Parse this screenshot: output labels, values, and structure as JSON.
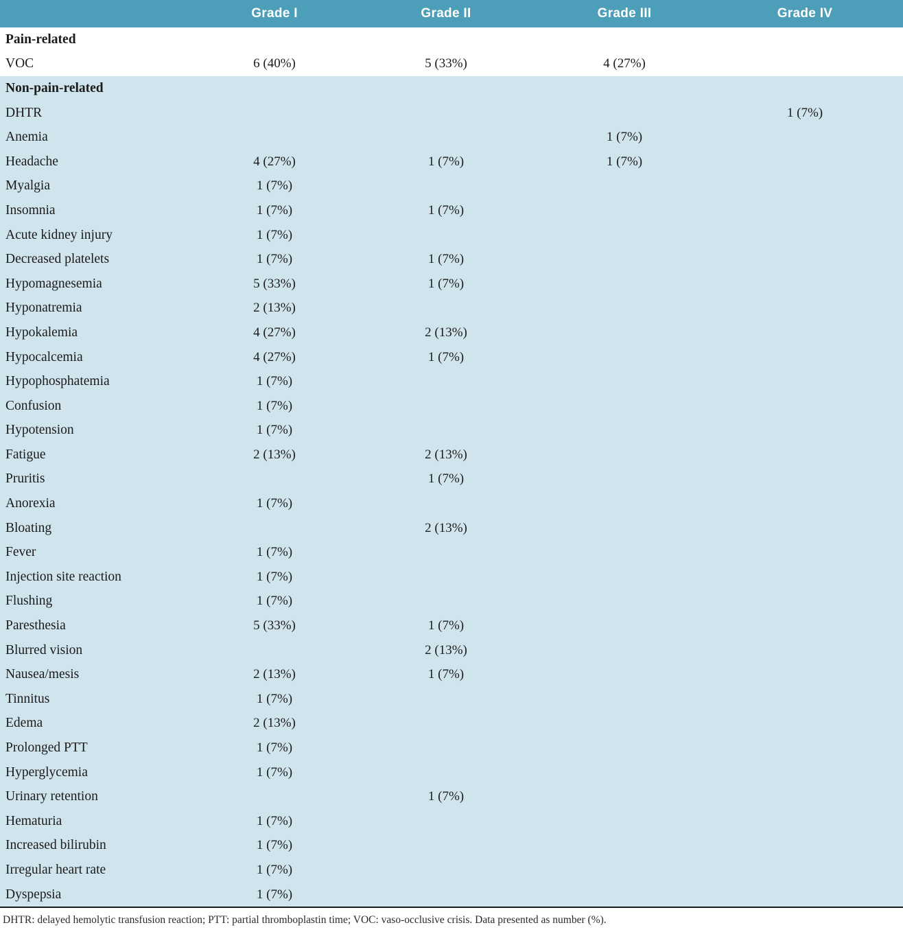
{
  "header": {
    "columns": [
      "Grade I",
      "Grade II",
      "Grade III",
      "Grade IV"
    ]
  },
  "sections": [
    {
      "title": "Pain-related",
      "shaded": false,
      "rows": [
        {
          "label": "VOC",
          "values": [
            "6 (40%)",
            "5 (33%)",
            "4 (27%)",
            ""
          ]
        }
      ]
    },
    {
      "title": "Non-pain-related",
      "shaded": true,
      "rows": [
        {
          "label": "DHTR",
          "values": [
            "",
            "",
            "",
            "1 (7%)"
          ]
        },
        {
          "label": "Anemia",
          "values": [
            "",
            "",
            "1 (7%)",
            ""
          ]
        },
        {
          "label": "Headache",
          "values": [
            "4 (27%)",
            "1 (7%)",
            "1 (7%)",
            ""
          ]
        },
        {
          "label": "Myalgia",
          "values": [
            "1 (7%)",
            "",
            "",
            ""
          ]
        },
        {
          "label": "Insomnia",
          "values": [
            "1 (7%)",
            "1 (7%)",
            "",
            ""
          ]
        },
        {
          "label": "Acute kidney injury",
          "values": [
            "1 (7%)",
            "",
            "",
            ""
          ]
        },
        {
          "label": "Decreased platelets",
          "values": [
            "1 (7%)",
            "1 (7%)",
            "",
            ""
          ]
        },
        {
          "label": "Hypomagnesemia",
          "values": [
            "5 (33%)",
            "1 (7%)",
            "",
            ""
          ]
        },
        {
          "label": "Hyponatremia",
          "values": [
            "2 (13%)",
            "",
            "",
            ""
          ]
        },
        {
          "label": "Hypokalemia",
          "values": [
            "4 (27%)",
            "2 (13%)",
            "",
            ""
          ]
        },
        {
          "label": "Hypocalcemia",
          "values": [
            "4 (27%)",
            "1 (7%)",
            "",
            ""
          ]
        },
        {
          "label": "Hypophosphatemia",
          "values": [
            "1 (7%)",
            "",
            "",
            ""
          ]
        },
        {
          "label": "Confusion",
          "values": [
            "1 (7%)",
            "",
            "",
            ""
          ]
        },
        {
          "label": "Hypotension",
          "values": [
            "1 (7%)",
            "",
            "",
            ""
          ]
        },
        {
          "label": "Fatigue",
          "values": [
            "2 (13%)",
            "2 (13%)",
            "",
            ""
          ]
        },
        {
          "label": "Pruritis",
          "values": [
            "",
            "1 (7%)",
            "",
            ""
          ]
        },
        {
          "label": "Anorexia",
          "values": [
            "1 (7%)",
            "",
            "",
            ""
          ]
        },
        {
          "label": "Bloating",
          "values": [
            "",
            "2 (13%)",
            "",
            ""
          ]
        },
        {
          "label": "Fever",
          "values": [
            "1 (7%)",
            "",
            "",
            ""
          ]
        },
        {
          "label": "Injection site reaction",
          "values": [
            "1 (7%)",
            "",
            "",
            ""
          ]
        },
        {
          "label": "Flushing",
          "values": [
            "1 (7%)",
            "",
            "",
            ""
          ]
        },
        {
          "label": "Paresthesia",
          "values": [
            "5 (33%)",
            "1 (7%)",
            "",
            ""
          ]
        },
        {
          "label": "Blurred vision",
          "values": [
            "",
            "2 (13%)",
            "",
            ""
          ]
        },
        {
          "label": "Nausea/mesis",
          "values": [
            "2 (13%)",
            "1 (7%)",
            "",
            ""
          ]
        },
        {
          "label": "Tinnitus",
          "values": [
            "1 (7%)",
            "",
            "",
            ""
          ]
        },
        {
          "label": "Edema",
          "values": [
            "2 (13%)",
            "",
            "",
            ""
          ]
        },
        {
          "label": "Prolonged PTT",
          "values": [
            "1 (7%)",
            "",
            "",
            ""
          ]
        },
        {
          "label": "Hyperglycemia",
          "values": [
            "1 (7%)",
            "",
            "",
            ""
          ]
        },
        {
          "label": "Urinary retention",
          "values": [
            "",
            "1 (7%)",
            "",
            ""
          ]
        },
        {
          "label": "Hematuria",
          "values": [
            "1 (7%)",
            "",
            "",
            ""
          ]
        },
        {
          "label": "Increased bilirubin",
          "values": [
            "1 (7%)",
            "",
            "",
            ""
          ]
        },
        {
          "label": "Irregular heart rate",
          "values": [
            "1 (7%)",
            "",
            "",
            ""
          ]
        },
        {
          "label": "Dyspepsia",
          "values": [
            "1 (7%)",
            "",
            "",
            ""
          ]
        }
      ]
    }
  ],
  "footnote": "DHTR: delayed hemolytic transfusion reaction; PTT: partial thromboplastin time; VOC: vaso-occlusive crisis. Data presented as number (%).",
  "colors": {
    "header_bg": "#4d9fb9",
    "shaded_bg": "#d0e4ed",
    "header_text": "#ffffff",
    "body_text": "#1b1b1b"
  }
}
